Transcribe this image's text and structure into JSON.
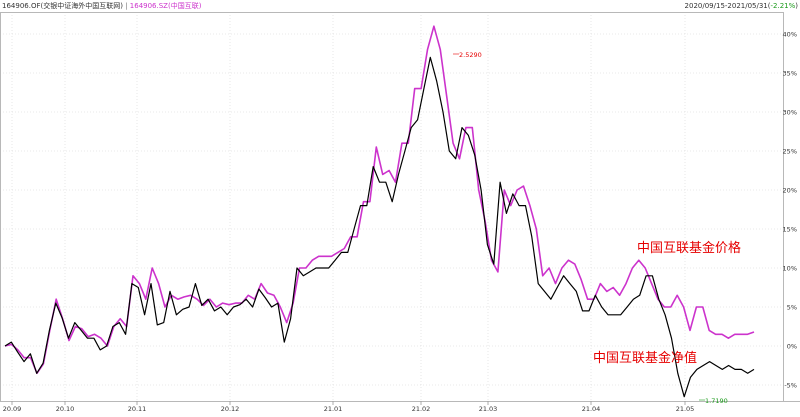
{
  "header": {
    "nav_code": "164906.OF",
    "nav_name": "(交银中证海外中国互联网)",
    "separator": "|",
    "price_code": "164906.SZ",
    "price_name": "(中国互联)",
    "date_range": "2020/09/15-2021/05/31(",
    "change": "-2.21%",
    "close_paren": ")"
  },
  "colors": {
    "nav": "#000000",
    "price": "#cc33cc",
    "annotation": "#e60000",
    "negative": "#1a9a1a"
  },
  "chart_data": {
    "type": "line",
    "x_ticks": [
      "20.09",
      "20.10",
      "20.11",
      "20.12",
      "21.01",
      "21.02",
      "21.03",
      "21.04",
      "21.05"
    ],
    "y_ticks": [
      "40%",
      "35%",
      "30%",
      "25%",
      "20%",
      "15%",
      "10%",
      "5%",
      "0%",
      "-5%"
    ],
    "ylim": [
      -7,
      42
    ],
    "grid": true,
    "annotations": {
      "price_label": "中国互联基金价格",
      "nav_label": "中国互联基金净值"
    },
    "max_label": "2.5290",
    "min_label": "1.7190",
    "series": [
      {
        "name": "中国互联基金净值",
        "color": "#000000",
        "values": [
          0,
          0.5,
          -0.8,
          -2,
          -1,
          -3.5,
          -2.2,
          2,
          5.5,
          3.6,
          1,
          3,
          2,
          1,
          1,
          -0.5,
          0,
          2.5,
          3,
          1.5,
          8,
          7.5,
          4,
          8,
          2.7,
          3,
          7,
          4,
          4.7,
          5,
          8,
          5.2,
          6,
          4.5,
          5,
          4,
          5,
          5.3,
          6,
          5,
          7.3,
          6.2,
          5,
          5.5,
          0.5,
          3.5,
          10,
          9,
          9.5,
          10,
          10,
          10,
          11,
          12,
          12,
          15,
          18,
          18,
          23,
          21,
          21,
          18.5,
          22,
          25,
          28,
          29,
          33,
          37,
          34,
          30,
          25,
          24,
          28,
          27,
          24.5,
          20,
          13,
          10.5,
          21,
          17,
          19.5,
          18,
          18,
          14,
          8,
          7,
          6,
          7.5,
          9,
          8,
          7,
          4.5,
          4.5,
          6.5,
          5,
          4,
          4,
          4,
          5,
          6,
          6.5,
          9,
          9,
          6,
          4,
          1,
          -3.5,
          -6.5,
          -4,
          -3,
          -2.5,
          -2,
          -2.5,
          -3,
          -2.5,
          -3,
          -3,
          -3.5,
          -3
        ]
      },
      {
        "name": "中国互联基金价格",
        "color": "#cc33cc",
        "values": [
          0,
          0.2,
          -0.5,
          -1.5,
          -1.5,
          -3.5,
          -2.3,
          2,
          6,
          3.5,
          0.7,
          2.5,
          2.2,
          1.2,
          1.5,
          1,
          0,
          2.5,
          3.5,
          2.5,
          9,
          8,
          6,
          10,
          8,
          5,
          6.5,
          6,
          6.3,
          6.5,
          6,
          5.2,
          6,
          5,
          5.5,
          5.3,
          5.5,
          5.5,
          6.5,
          6,
          8,
          6.8,
          6.5,
          5,
          3,
          5.5,
          10,
          10,
          11,
          11.5,
          11.5,
          11.5,
          12,
          12.5,
          14,
          14,
          18.5,
          18.5,
          25.5,
          22,
          22.5,
          21,
          26,
          26,
          33,
          33,
          38,
          41,
          38,
          32,
          26,
          24,
          28,
          28,
          20,
          16,
          11,
          9.5,
          20,
          18,
          20,
          20.5,
          18,
          15,
          9,
          10,
          8,
          10,
          11,
          10.5,
          8.5,
          6,
          6,
          8,
          7,
          7.5,
          6.5,
          8,
          10,
          11,
          10,
          8,
          6,
          5,
          5,
          6.5,
          5,
          2,
          5,
          5,
          2,
          1.5,
          1.5,
          1,
          1.5,
          1.5,
          1.5,
          1.8
        ]
      }
    ]
  }
}
